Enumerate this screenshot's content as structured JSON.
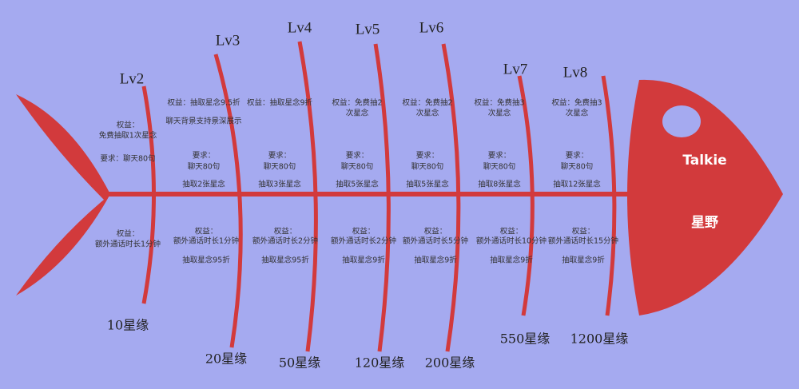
{
  "head": {
    "name": "Talkie",
    "subtitle": "星野"
  },
  "levels": [
    {
      "label": "Lv2",
      "threshold": "10星缘",
      "top": [
        "权益：",
        "免费抽取1次星念",
        "要求：聊天80句"
      ],
      "bottom": [
        "权益：",
        "额外通话时长1分钟"
      ]
    },
    {
      "label": "Lv3",
      "threshold": "20星缘",
      "top": [
        "权益：抽取星念9.5折",
        "聊天背景支持景深展示",
        "要求：",
        "聊天80句",
        "抽取2张星念"
      ],
      "bottom": [
        "权益：",
        "额外通话时长1分钟",
        "抽取星念95折"
      ]
    },
    {
      "label": "Lv4",
      "threshold": "50星缘",
      "top": [
        "权益：抽取星念9折",
        "要求：",
        "聊天80句",
        "抽取3张星念"
      ],
      "bottom": [
        "权益：",
        "额外通话时长2分钟",
        "抽取星念95折"
      ]
    },
    {
      "label": "Lv5",
      "threshold": "120星缘",
      "top": [
        "权益：免费抽2",
        "次星念",
        "要求：",
        "聊天80句",
        "抽取5张星念"
      ],
      "bottom": [
        "权益：",
        "额外通话时长2分钟",
        "抽取星念9折"
      ]
    },
    {
      "label": "Lv6",
      "threshold": "200星缘",
      "top": [
        "权益：免费抽2",
        "次星念",
        "要求：",
        "聊天80句",
        "抽取5张星念"
      ],
      "bottom": [
        "权益：",
        "额外通话时长5分钟",
        "抽取星念9折"
      ]
    },
    {
      "label": "Lv7",
      "threshold": "550星缘",
      "top": [
        "权益：免费抽3",
        "次星念",
        "要求：",
        "聊天80句",
        "抽取8张星念"
      ],
      "bottom": [
        "权益：",
        "额外通话时长10分钟",
        "抽取星念9折"
      ]
    },
    {
      "label": "Lv8",
      "threshold": "1200星缘",
      "top": [
        "权益：免费抽3",
        "次星念",
        "要求：",
        "聊天80句",
        "抽取12张星念"
      ],
      "bottom": [
        "权益：",
        "额外通话时长15分钟",
        "抽取星念9折"
      ]
    }
  ]
}
